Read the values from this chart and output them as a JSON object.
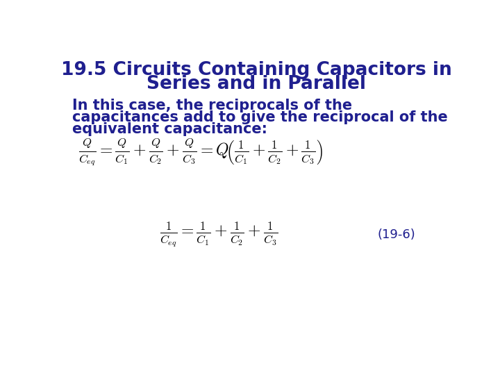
{
  "title_line1": "19.5 Circuits Containing Capacitors in",
  "title_line2": "Series and in Parallel",
  "body_text_line1": "In this case, the reciprocals of the",
  "body_text_line2": "capacitances add to give the reciprocal of the",
  "body_text_line3": "equivalent capacitance:",
  "label": "(19-6)",
  "title_color": "#1f1f8f",
  "body_color": "#1f1f8f",
  "equation_color": "#000000",
  "label_color": "#1f1f8f",
  "background_color": "#ffffff",
  "title_fontsize": 19,
  "body_fontsize": 15,
  "equation1_fontsize": 17,
  "equation2_fontsize": 17,
  "label_fontsize": 13
}
